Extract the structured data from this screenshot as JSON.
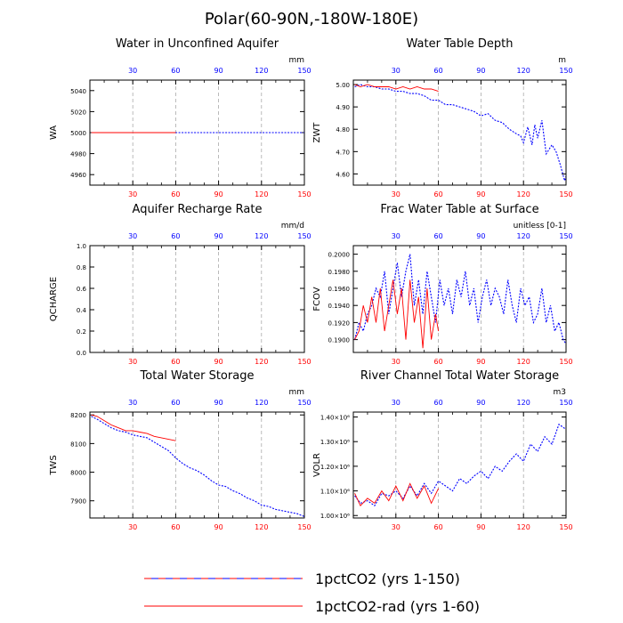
{
  "figure": {
    "title": "Polar(60-90N,-180W-180E)"
  },
  "colors": {
    "series_1": "#0000ff",
    "series_2": "#ff0000",
    "bottom_axis": "#ff0000",
    "top_axis": "#0000ff",
    "grid": "#aaaaaa",
    "legend_dash_1": "#ff0000",
    "legend_dash_2": "#0000ff"
  },
  "legend": [
    {
      "label": "1pctCO2 (yrs 1-150)",
      "style": "alternating red/blue dashed"
    },
    {
      "label": "1pctCO2-rad (yrs 1-60)",
      "style": "red solid"
    }
  ],
  "chart_data": [
    {
      "type": "line",
      "title": "Water in Unconfined Aquifer",
      "units": "mm",
      "ylabel": "WA",
      "xlim": [
        0,
        150
      ],
      "ylim": [
        4950,
        5050
      ],
      "x_ticks": [
        30,
        60,
        90,
        120,
        150
      ],
      "y_ticks": [
        4960,
        4980,
        5000,
        5020,
        5040
      ],
      "y_tick_labels": [
        "4960",
        "4980",
        "5000",
        "5020",
        "5040"
      ],
      "grid": "vertical dashed",
      "series": [
        {
          "x": [
            1,
            150
          ],
          "values": [
            5000,
            5000
          ],
          "x_end": 150
        },
        {
          "x": [
            1,
            60
          ],
          "values": [
            5000,
            5000
          ],
          "x_end": 60
        }
      ]
    },
    {
      "type": "line",
      "title": "Water Table Depth",
      "units": "m",
      "ylabel": "ZWT",
      "xlim": [
        0,
        150
      ],
      "ylim": [
        4.55,
        5.02
      ],
      "x_ticks": [
        30,
        60,
        90,
        120,
        150
      ],
      "y_ticks": [
        4.6,
        4.7,
        4.8,
        4.9,
        5.0
      ],
      "y_tick_labels": [
        "4.60",
        "4.70",
        "4.80",
        "4.90",
        "5.00"
      ],
      "grid": "vertical dashed",
      "series": [
        {
          "x": [
            1,
            5,
            10,
            15,
            20,
            25,
            30,
            35,
            40,
            45,
            50,
            55,
            60,
            65,
            70,
            75,
            80,
            85,
            90,
            95,
            100,
            105,
            110,
            115,
            118,
            120,
            123,
            126,
            128,
            130,
            133,
            136,
            140,
            143,
            146,
            149,
            150
          ],
          "values": [
            4.99,
            5.0,
            4.99,
            4.99,
            4.98,
            4.98,
            4.97,
            4.97,
            4.96,
            4.96,
            4.95,
            4.93,
            4.93,
            4.91,
            4.91,
            4.9,
            4.89,
            4.88,
            4.86,
            4.87,
            4.84,
            4.83,
            4.8,
            4.78,
            4.77,
            4.74,
            4.81,
            4.73,
            4.82,
            4.76,
            4.84,
            4.69,
            4.73,
            4.7,
            4.64,
            4.57,
            4.59
          ],
          "x_end": 150
        },
        {
          "x": [
            1,
            5,
            10,
            15,
            20,
            25,
            30,
            35,
            40,
            45,
            50,
            55,
            60
          ],
          "values": [
            5.0,
            4.99,
            5.0,
            4.99,
            4.99,
            4.99,
            4.98,
            4.99,
            4.98,
            4.99,
            4.98,
            4.98,
            4.97
          ],
          "x_end": 60
        }
      ]
    },
    {
      "type": "line",
      "title": "Aquifer Recharge Rate",
      "units": "mm/d",
      "ylabel": "QCHARGE",
      "xlim": [
        0,
        150
      ],
      "ylim": [
        0,
        1
      ],
      "x_ticks": [
        30,
        60,
        90,
        120,
        150
      ],
      "y_ticks": [
        0,
        0.2,
        0.4,
        0.6,
        0.8,
        1.0
      ],
      "y_tick_labels": [
        "0.0",
        "0.2",
        "0.4",
        "0.6",
        "0.8",
        "1.0"
      ],
      "grid": "vertical dashed",
      "series": [
        {
          "x": [],
          "values": [],
          "x_end": 150
        },
        {
          "x": [],
          "values": [],
          "x_end": 60
        }
      ]
    },
    {
      "type": "line",
      "title": "Frac Water Table at Surface",
      "units": "unitless [0-1]",
      "ylabel": "FCOV",
      "xlim": [
        0,
        150
      ],
      "ylim": [
        0.1885,
        0.201
      ],
      "x_ticks": [
        30,
        60,
        90,
        120,
        150
      ],
      "y_ticks": [
        0.19,
        0.192,
        0.194,
        0.196,
        0.198,
        0.2
      ],
      "y_tick_labels": [
        "0.1900",
        "0.1920",
        "0.1940",
        "0.1960",
        "0.1980",
        "0.2000"
      ],
      "grid": "vertical dashed",
      "series": [
        {
          "x": [
            1,
            4,
            7,
            10,
            13,
            16,
            19,
            22,
            25,
            28,
            31,
            34,
            37,
            40,
            43,
            46,
            49,
            52,
            55,
            58,
            61,
            64,
            67,
            70,
            73,
            76,
            79,
            82,
            85,
            88,
            91,
            94,
            97,
            100,
            103,
            106,
            109,
            112,
            115,
            118,
            121,
            124,
            127,
            130,
            133,
            136,
            139,
            142,
            145,
            148,
            150
          ],
          "values": [
            0.19,
            0.192,
            0.191,
            0.193,
            0.194,
            0.196,
            0.195,
            0.198,
            0.193,
            0.196,
            0.199,
            0.195,
            0.198,
            0.2,
            0.194,
            0.197,
            0.193,
            0.198,
            0.195,
            0.192,
            0.197,
            0.194,
            0.196,
            0.193,
            0.197,
            0.195,
            0.198,
            0.194,
            0.196,
            0.192,
            0.195,
            0.197,
            0.194,
            0.196,
            0.195,
            0.193,
            0.197,
            0.194,
            0.192,
            0.196,
            0.194,
            0.195,
            0.192,
            0.193,
            0.196,
            0.192,
            0.194,
            0.191,
            0.192,
            0.19,
            0.1895
          ],
          "x_end": 150
        },
        {
          "x": [
            1,
            4,
            7,
            10,
            13,
            16,
            19,
            22,
            25,
            28,
            31,
            34,
            37,
            40,
            43,
            46,
            49,
            52,
            55,
            58,
            60
          ],
          "values": [
            0.19,
            0.191,
            0.194,
            0.192,
            0.195,
            0.192,
            0.196,
            0.191,
            0.194,
            0.197,
            0.193,
            0.196,
            0.19,
            0.197,
            0.192,
            0.195,
            0.189,
            0.196,
            0.19,
            0.193,
            0.191
          ],
          "x_end": 60
        }
      ]
    },
    {
      "type": "line",
      "title": "Total Water Storage",
      "units": "mm",
      "ylabel": "TWS",
      "xlim": [
        0,
        150
      ],
      "ylim": [
        7840,
        8210
      ],
      "x_ticks": [
        30,
        60,
        90,
        120,
        150
      ],
      "y_ticks": [
        7900,
        8000,
        8100,
        8200
      ],
      "y_tick_labels": [
        "7900",
        "8000",
        "8100",
        "8200"
      ],
      "grid": "vertical dashed",
      "series": [
        {
          "x": [
            1,
            5,
            10,
            15,
            20,
            25,
            30,
            35,
            40,
            45,
            50,
            55,
            60,
            65,
            70,
            75,
            80,
            85,
            90,
            95,
            100,
            105,
            110,
            115,
            120,
            125,
            130,
            135,
            140,
            145,
            150
          ],
          "values": [
            8195,
            8185,
            8170,
            8155,
            8145,
            8140,
            8130,
            8125,
            8120,
            8105,
            8090,
            8075,
            8050,
            8030,
            8015,
            8005,
            7990,
            7970,
            7955,
            7950,
            7935,
            7925,
            7910,
            7900,
            7885,
            7880,
            7870,
            7865,
            7860,
            7855,
            7845
          ],
          "x_end": 150
        },
        {
          "x": [
            1,
            5,
            10,
            15,
            20,
            25,
            30,
            35,
            40,
            45,
            50,
            55,
            60
          ],
          "values": [
            8200,
            8195,
            8180,
            8165,
            8155,
            8145,
            8145,
            8140,
            8135,
            8125,
            8120,
            8115,
            8110
          ],
          "x_end": 60
        }
      ]
    },
    {
      "type": "line",
      "title": "River Channel Total Water Storage",
      "units": "m3",
      "ylabel": "VOLR",
      "xlim": [
        0,
        150
      ],
      "ylim": [
        990000,
        1420000
      ],
      "x_ticks": [
        30,
        60,
        90,
        120,
        150
      ],
      "y_ticks": [
        1000000,
        1100000,
        1200000,
        1300000,
        1400000
      ],
      "y_tick_labels": [
        "1.00×10⁶",
        "1.10×10⁶",
        "1.20×10⁶",
        "1.30×10⁶",
        "1.40×10⁶"
      ],
      "grid": "vertical dashed",
      "series": [
        {
          "x": [
            1,
            5,
            10,
            15,
            20,
            25,
            30,
            35,
            40,
            45,
            50,
            55,
            60,
            65,
            70,
            75,
            80,
            85,
            90,
            95,
            100,
            105,
            110,
            115,
            120,
            125,
            130,
            135,
            140,
            145,
            150
          ],
          "values": [
            1080000,
            1050000,
            1060000,
            1040000,
            1090000,
            1080000,
            1100000,
            1070000,
            1120000,
            1080000,
            1130000,
            1090000,
            1140000,
            1120000,
            1100000,
            1150000,
            1130000,
            1160000,
            1180000,
            1150000,
            1200000,
            1180000,
            1220000,
            1250000,
            1220000,
            1290000,
            1260000,
            1320000,
            1290000,
            1370000,
            1350000
          ],
          "x_end": 150
        },
        {
          "x": [
            1,
            5,
            10,
            15,
            20,
            25,
            30,
            35,
            40,
            45,
            50,
            55,
            60
          ],
          "values": [
            1090000,
            1040000,
            1070000,
            1050000,
            1100000,
            1060000,
            1120000,
            1060000,
            1130000,
            1070000,
            1120000,
            1050000,
            1110000
          ],
          "x_end": 60
        }
      ]
    }
  ]
}
